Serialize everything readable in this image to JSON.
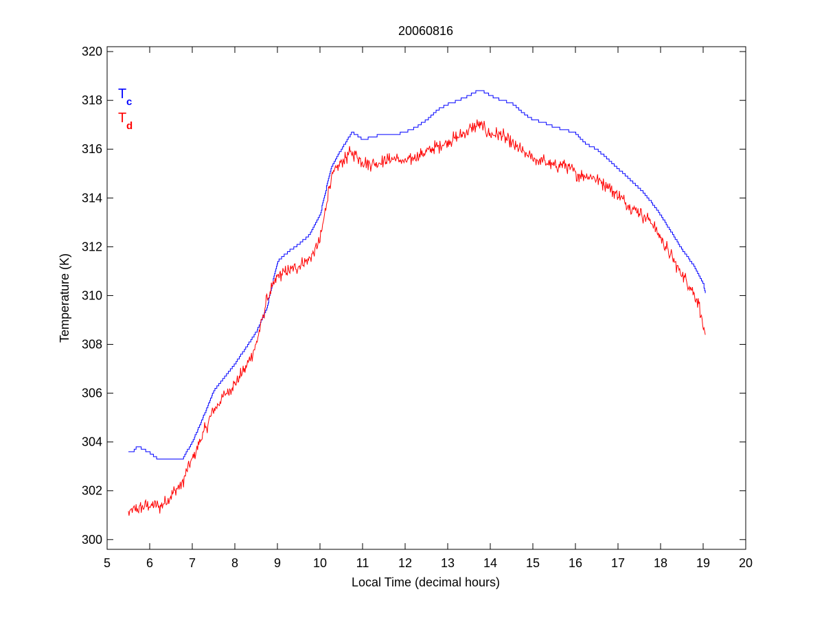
{
  "chart_data": {
    "type": "line",
    "title": "20060816",
    "xlabel": "Local Time (decimal hours)",
    "ylabel": "Temperature (K)",
    "xlim": [
      5,
      20
    ],
    "ylim": [
      299.6,
      320.2
    ],
    "xticks": [
      5,
      6,
      7,
      8,
      9,
      10,
      11,
      12,
      13,
      14,
      15,
      16,
      17,
      18,
      19,
      20
    ],
    "yticks": [
      300,
      302,
      304,
      306,
      308,
      310,
      312,
      314,
      316,
      318,
      320
    ],
    "grid": false,
    "legend_position": "top-left",
    "series": [
      {
        "name": "Tc",
        "legend_main": "T",
        "legend_sub": "c",
        "color": "#0000ff",
        "noise": 0,
        "stepped": true,
        "x": [
          5.5,
          5.6,
          5.7,
          5.8,
          6.0,
          6.2,
          6.5,
          6.75,
          7.0,
          7.25,
          7.5,
          8.0,
          8.5,
          8.75,
          9.0,
          9.25,
          9.5,
          9.75,
          10.0,
          10.25,
          10.5,
          10.75,
          11.0,
          11.25,
          11.5,
          11.75,
          12.0,
          12.25,
          12.5,
          12.75,
          13.0,
          13.25,
          13.5,
          13.75,
          14.0,
          14.25,
          14.5,
          14.75,
          15.0,
          15.25,
          15.5,
          15.75,
          16.0,
          16.25,
          16.5,
          16.75,
          17.0,
          17.25,
          17.5,
          17.75,
          18.0,
          18.25,
          18.5,
          18.75,
          19.0,
          19.05
        ],
        "y": [
          303.55,
          303.6,
          303.8,
          303.75,
          303.55,
          303.3,
          303.25,
          303.25,
          304.0,
          305.0,
          306.1,
          307.2,
          308.5,
          309.5,
          311.4,
          311.8,
          312.1,
          312.5,
          313.3,
          315.2,
          316.0,
          316.7,
          316.4,
          316.5,
          316.65,
          316.6,
          316.7,
          316.9,
          317.2,
          317.6,
          317.85,
          318.0,
          318.2,
          318.45,
          318.2,
          318.0,
          317.9,
          317.5,
          317.2,
          317.1,
          316.9,
          316.8,
          316.65,
          316.2,
          316.0,
          315.6,
          315.2,
          314.8,
          314.4,
          313.9,
          313.3,
          312.6,
          311.9,
          311.3,
          310.5,
          310.1
        ]
      },
      {
        "name": "Td",
        "legend_main": "T",
        "legend_sub": "d",
        "color": "#ff0000",
        "noise": 0.35,
        "stepped": false,
        "x": [
          5.5,
          5.75,
          6.0,
          6.25,
          6.5,
          6.75,
          7.0,
          7.25,
          7.5,
          7.75,
          8.0,
          8.25,
          8.5,
          8.75,
          9.0,
          9.25,
          9.5,
          9.75,
          10.0,
          10.25,
          10.5,
          10.75,
          11.0,
          11.25,
          11.5,
          11.75,
          12.0,
          12.25,
          12.5,
          12.75,
          13.0,
          13.25,
          13.5,
          13.75,
          14.0,
          14.25,
          14.5,
          14.75,
          15.0,
          15.25,
          15.5,
          15.75,
          16.0,
          16.25,
          16.5,
          16.75,
          17.0,
          17.25,
          17.5,
          17.75,
          18.0,
          18.25,
          18.5,
          18.75,
          18.9,
          19.0,
          19.05
        ],
        "y": [
          301.1,
          301.3,
          301.4,
          301.35,
          301.8,
          302.3,
          303.3,
          304.3,
          305.3,
          305.9,
          306.4,
          307.0,
          308.0,
          309.8,
          310.8,
          311.0,
          311.2,
          311.5,
          312.2,
          314.8,
          315.5,
          315.9,
          315.5,
          315.4,
          315.5,
          315.6,
          315.5,
          315.7,
          315.9,
          316.1,
          316.3,
          316.5,
          316.8,
          317.0,
          316.6,
          316.6,
          316.2,
          315.9,
          315.6,
          315.5,
          315.3,
          315.4,
          315.0,
          314.9,
          314.8,
          314.5,
          314.1,
          313.7,
          313.4,
          313.1,
          312.4,
          311.6,
          310.9,
          310.2,
          309.7,
          308.7,
          308.2
        ]
      }
    ]
  }
}
